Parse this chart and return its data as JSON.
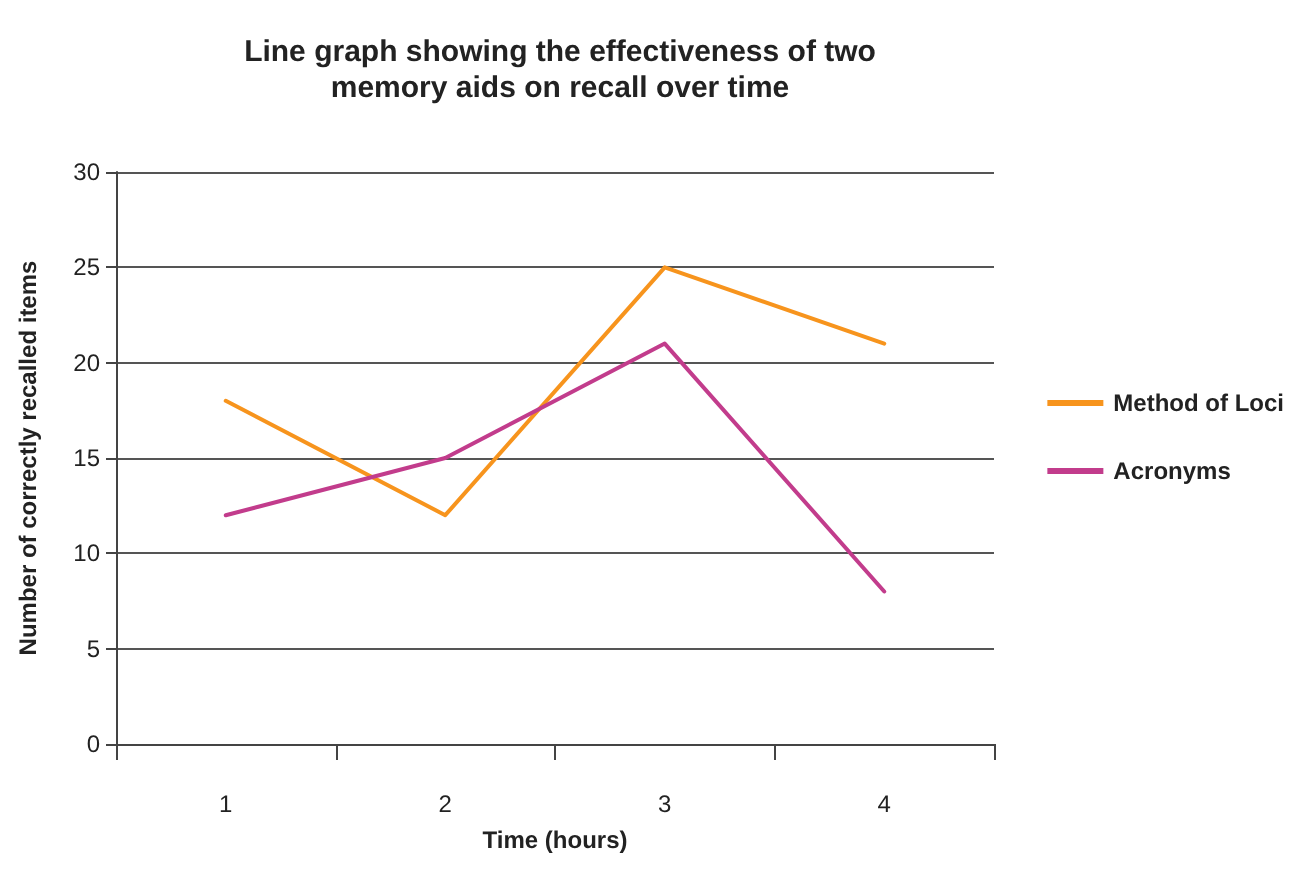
{
  "chart_data": {
    "type": "line",
    "title": "Line graph showing the effectiveness of two\nmemory aids on recall over time",
    "xlabel": "Time (hours)",
    "ylabel": "Number of correctly recalled items",
    "categories": [
      "1",
      "2",
      "3",
      "4"
    ],
    "series": [
      {
        "name": "Method of Loci",
        "color": "#f7941d",
        "values": [
          18,
          12,
          25,
          21
        ]
      },
      {
        "name": "Acronyms",
        "color": "#c23c8c",
        "values": [
          12,
          15,
          21,
          8
        ]
      }
    ],
    "ylim": [
      0,
      30
    ],
    "yticks": [
      0,
      5,
      10,
      15,
      20,
      25,
      30
    ],
    "grid": "y",
    "legend": "right",
    "marker": "none",
    "line_style": "solid"
  }
}
